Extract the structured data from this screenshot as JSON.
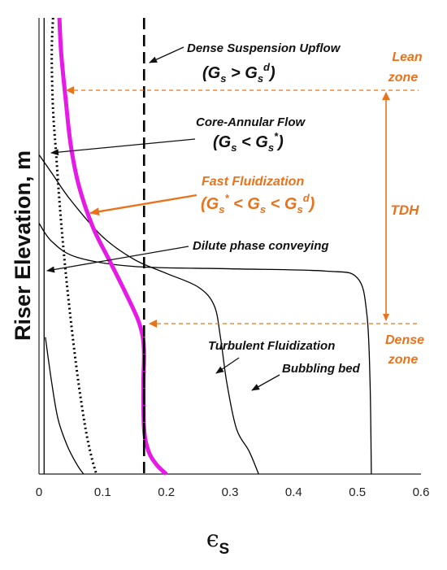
{
  "chart_data": {
    "type": "line",
    "title": "",
    "xlabel": "ϵ",
    "xlabel_subscript": "S",
    "ylabel": "Riser Elevation, m",
    "xlim": [
      0,
      0.6
    ],
    "ylim": [
      0,
      1
    ],
    "xticks": [
      "0",
      "0.1",
      "0.2",
      "0.3",
      "0.4",
      "0.5",
      "0.6"
    ],
    "grid": false,
    "series": [
      {
        "key": "fast_fluidization",
        "color": "#e619e6",
        "style": "thick",
        "points": [
          [
            0.032,
            1.0
          ],
          [
            0.035,
            0.92
          ],
          [
            0.042,
            0.82
          ],
          [
            0.05,
            0.72
          ],
          [
            0.063,
            0.63
          ],
          [
            0.085,
            0.54
          ],
          [
            0.11,
            0.47
          ],
          [
            0.135,
            0.4
          ],
          [
            0.155,
            0.34
          ],
          [
            0.163,
            0.3
          ],
          [
            0.165,
            0.26
          ],
          [
            0.164,
            0.2
          ],
          [
            0.165,
            0.1
          ],
          [
            0.172,
            0.05
          ],
          [
            0.185,
            0.02
          ],
          [
            0.2,
            0.0
          ]
        ]
      },
      {
        "key": "dense_suspension_upflow",
        "color": "#000000",
        "style": "dashed",
        "points": [
          [
            0.165,
            1.0
          ],
          [
            0.165,
            0.0
          ]
        ]
      },
      {
        "key": "core_annular_flow",
        "color": "#000000",
        "style": "dotted",
        "points": [
          [
            0.022,
            1.0
          ],
          [
            0.02,
            0.92
          ],
          [
            0.022,
            0.8
          ],
          [
            0.027,
            0.7
          ],
          [
            0.032,
            0.6
          ],
          [
            0.038,
            0.5
          ],
          [
            0.045,
            0.4
          ],
          [
            0.053,
            0.3
          ],
          [
            0.062,
            0.2
          ],
          [
            0.073,
            0.1
          ],
          [
            0.082,
            0.04
          ],
          [
            0.09,
            0.0
          ]
        ]
      },
      {
        "key": "dilute_phase_conveying",
        "color": "#000000",
        "style": "solid",
        "points": [
          [
            0.008,
            1.0
          ],
          [
            0.008,
            0.0
          ]
        ]
      },
      {
        "key": "turbulent_fluidization",
        "color": "#000000",
        "style": "solid",
        "points": [
          [
            0.0,
            0.7
          ],
          [
            0.02,
            0.66
          ],
          [
            0.05,
            0.6
          ],
          [
            0.1,
            0.52
          ],
          [
            0.15,
            0.47
          ],
          [
            0.2,
            0.44
          ],
          [
            0.25,
            0.41
          ],
          [
            0.275,
            0.37
          ],
          [
            0.285,
            0.3
          ],
          [
            0.295,
            0.2
          ],
          [
            0.31,
            0.1
          ],
          [
            0.33,
            0.05
          ],
          [
            0.345,
            0.0
          ]
        ]
      },
      {
        "key": "bubbling_bed",
        "color": "#000000",
        "style": "solid",
        "points": [
          [
            0.0,
            0.55
          ],
          [
            0.02,
            0.51
          ],
          [
            0.06,
            0.475
          ],
          [
            0.15,
            0.455
          ],
          [
            0.3,
            0.45
          ],
          [
            0.45,
            0.445
          ],
          [
            0.5,
            0.43
          ],
          [
            0.515,
            0.35
          ],
          [
            0.52,
            0.2
          ],
          [
            0.522,
            0.0
          ]
        ]
      },
      {
        "key": "packed_left",
        "color": "#000000",
        "style": "solid",
        "points": [
          [
            0.01,
            0.3
          ],
          [
            0.02,
            0.2
          ],
          [
            0.03,
            0.12
          ],
          [
            0.045,
            0.06
          ],
          [
            0.06,
            0.02
          ],
          [
            0.07,
            0.0
          ]
        ]
      }
    ],
    "annotations": {
      "dense_suspension": "Dense Suspension Upflow",
      "gs_gt_gsd": "(G",
      "core_annular": "Core-Annular Flow",
      "gs_lt_gsstar": "(G",
      "fast_fluidization": "Fast Fluidization",
      "gsstar_lt_gs_lt_gsd": "(G",
      "dilute_phase": "Dilute  phase conveying",
      "turbulent": "Turbulent Fluidization",
      "bubbling": "Bubbling bed",
      "lean_zone_1": "Lean",
      "lean_zone_2": "zone",
      "tdh": "TDH",
      "dense_zone_1": "Dense",
      "dense_zone_2": "zone"
    },
    "colors": {
      "accent_orange": "#e8731c",
      "magenta": "#e619e6",
      "ink": "#111111"
    }
  }
}
